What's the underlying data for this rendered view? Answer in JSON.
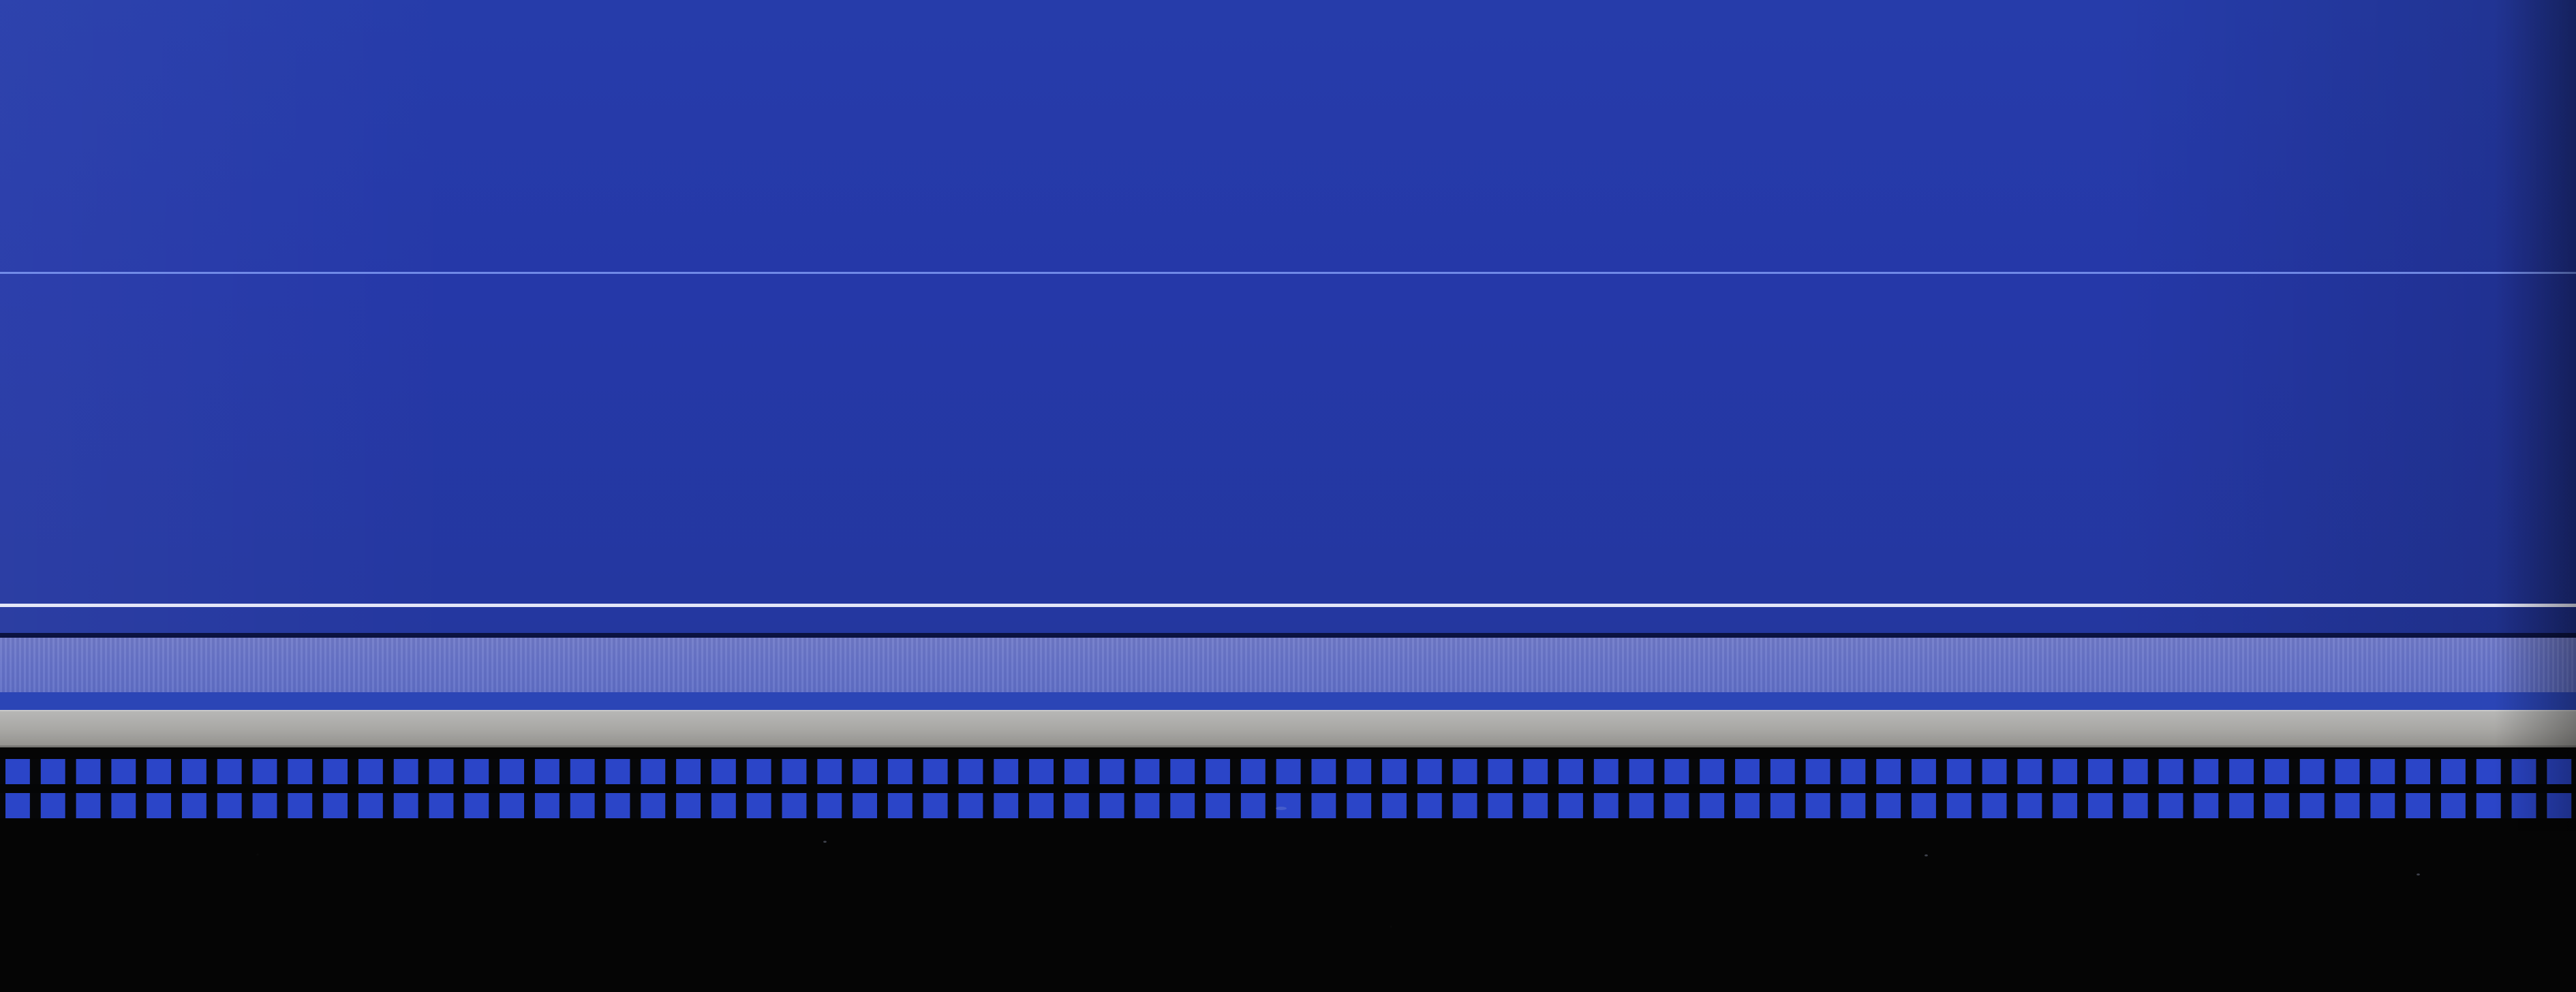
{
  "image": {
    "colors": {
      "main_blue": "#263caa",
      "thin_upper_line": "#8ea9ff",
      "thin_lower_line": "#f4f5ff",
      "lavender_band": "#6f79c8",
      "silver_band": "#b8b8b7",
      "checker_blue": "#2b45c8",
      "black": "#050505"
    }
  }
}
